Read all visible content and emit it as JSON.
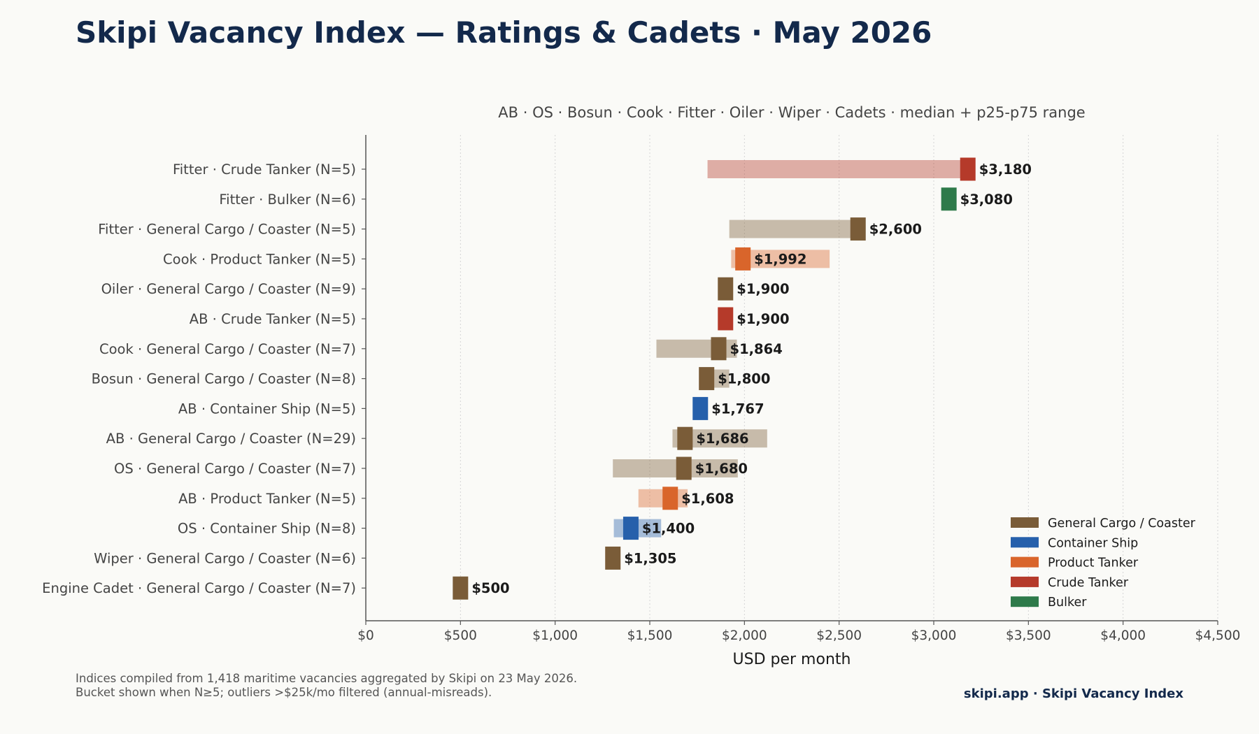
{
  "page": {
    "title": "Skipi Vacancy Index — Ratings & Cadets · May 2026",
    "footnote_lines": [
      "Indices compiled from 1,418 maritime vacancies aggregated by Skipi on 23 May 2026.",
      "Bucket shown when N≥5; outliers >$25k/mo filtered (annual-misreads)."
    ],
    "brand": "skipi.app · Skipi Vacancy Index"
  },
  "chart_data": {
    "type": "bar",
    "orientation": "horizontal",
    "subtitle": "AB · OS · Bosun · Cook · Fitter · Oiler · Wiper · Cadets  ·  median + p25-p75 range",
    "xlabel": "USD per month",
    "ylabel": "",
    "xlim": [
      0,
      4500
    ],
    "xticks": [
      0,
      500,
      1000,
      1500,
      2000,
      2500,
      3000,
      3500,
      4000,
      4500
    ],
    "xtick_labels": [
      "$0",
      "$500",
      "$1,000",
      "$1,500",
      "$2,000",
      "$2,500",
      "$3,000",
      "$3,500",
      "$4,000",
      "$4,500"
    ],
    "grid": "vertical dotted",
    "legend_position": "bottom-right",
    "legend": [
      {
        "name": "General Cargo / Coaster",
        "color": "#7a5c38"
      },
      {
        "name": "Container Ship",
        "color": "#2660ab"
      },
      {
        "name": "Product Tanker",
        "color": "#d9652b"
      },
      {
        "name": "Crude Tanker",
        "color": "#b53a2a"
      },
      {
        "name": "Bulker",
        "color": "#2e7a4a"
      }
    ],
    "rows": [
      {
        "label": "Fitter · Crude Tanker  (N=5)",
        "vessel": "Crude Tanker",
        "median": 3180,
        "p25": 1805,
        "p75": 3180,
        "value_label": "$3,180"
      },
      {
        "label": "Fitter · Bulker  (N=6)",
        "vessel": "Bulker",
        "median": 3080,
        "p25": null,
        "p75": null,
        "value_label": "$3,080"
      },
      {
        "label": "Fitter · General Cargo / Coaster  (N=5)",
        "vessel": "General Cargo / Coaster",
        "median": 2600,
        "p25": 1920,
        "p75": 2600,
        "value_label": "$2,600"
      },
      {
        "label": "Cook · Product Tanker  (N=5)",
        "vessel": "Product Tanker",
        "median": 1992,
        "p25": 1930,
        "p75": 2450,
        "value_label": "$1,992"
      },
      {
        "label": "Oiler · General Cargo / Coaster  (N=9)",
        "vessel": "General Cargo / Coaster",
        "median": 1900,
        "p25": null,
        "p75": null,
        "value_label": "$1,900"
      },
      {
        "label": "AB · Crude Tanker  (N=5)",
        "vessel": "Crude Tanker",
        "median": 1900,
        "p25": null,
        "p75": null,
        "value_label": "$1,900"
      },
      {
        "label": "Cook · General Cargo / Coaster  (N=7)",
        "vessel": "General Cargo / Coaster",
        "median": 1864,
        "p25": 1535,
        "p75": 1960,
        "value_label": "$1,864"
      },
      {
        "label": "Bosun · General Cargo / Coaster  (N=8)",
        "vessel": "General Cargo / Coaster",
        "median": 1800,
        "p25": 1800,
        "p75": 1920,
        "value_label": "$1,800"
      },
      {
        "label": "AB · Container Ship  (N=5)",
        "vessel": "Container Ship",
        "median": 1767,
        "p25": null,
        "p75": null,
        "value_label": "$1,767"
      },
      {
        "label": "AB · General Cargo / Coaster  (N=29)",
        "vessel": "General Cargo / Coaster",
        "median": 1686,
        "p25": 1620,
        "p75": 2120,
        "value_label": "$1,686"
      },
      {
        "label": "OS · General Cargo / Coaster  (N=7)",
        "vessel": "General Cargo / Coaster",
        "median": 1680,
        "p25": 1305,
        "p75": 1965,
        "value_label": "$1,680"
      },
      {
        "label": "AB · Product Tanker  (N=5)",
        "vessel": "Product Tanker",
        "median": 1608,
        "p25": 1440,
        "p75": 1700,
        "value_label": "$1,608"
      },
      {
        "label": "OS · Container Ship  (N=8)",
        "vessel": "Container Ship",
        "median": 1400,
        "p25": 1310,
        "p75": 1560,
        "value_label": "$1,400"
      },
      {
        "label": "Wiper · General Cargo / Coaster  (N=6)",
        "vessel": "General Cargo / Coaster",
        "median": 1305,
        "p25": null,
        "p75": null,
        "value_label": "$1,305"
      },
      {
        "label": "Engine Cadet · General Cargo / Coaster  (N=7)",
        "vessel": "General Cargo / Coaster",
        "median": 500,
        "p25": null,
        "p75": null,
        "value_label": "$500"
      }
    ]
  }
}
